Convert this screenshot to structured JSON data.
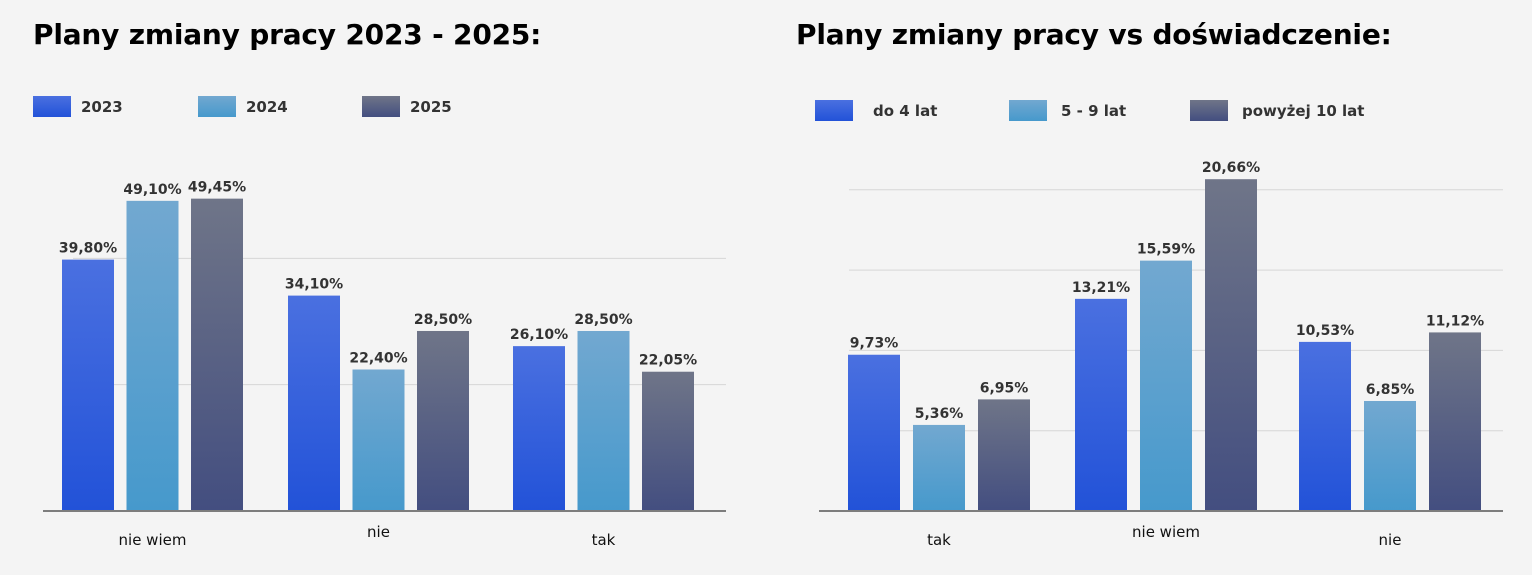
{
  "colors": {
    "background": "#f4f4f4",
    "series": [
      {
        "top": "#4a70e0",
        "bottom": "#2252d8"
      },
      {
        "top": "#72a8d0",
        "bottom": "#4699cc"
      },
      {
        "top": "#6f7588",
        "bottom": "#434e80"
      }
    ],
    "grid": "#d6d6d6",
    "axis": "#7d7d7d"
  },
  "chart_data": [
    {
      "type": "bar",
      "title": "Plany zmiany pracy 2023 - 2025:",
      "categories": [
        "nie wiem",
        "nie",
        "tak"
      ],
      "series": [
        {
          "name": "2023",
          "values": [
            39.8,
            34.1,
            26.1
          ],
          "labels": [
            "39,80%",
            "34,10%",
            "26,10%"
          ]
        },
        {
          "name": "2024",
          "values": [
            49.1,
            22.4,
            28.5
          ],
          "labels": [
            "49,10%",
            "22,40%",
            "28,50%"
          ]
        },
        {
          "name": "2025",
          "values": [
            49.45,
            28.5,
            22.05
          ],
          "labels": [
            "49,45%",
            "28,50%",
            "22,05%"
          ]
        }
      ],
      "ylim": [
        0,
        60
      ],
      "grid": true,
      "legend": "top-left"
    },
    {
      "type": "bar",
      "title": "Plany zmiany pracy vs doświadczenie:",
      "categories": [
        "tak",
        "nie wiem",
        "nie"
      ],
      "series": [
        {
          "name": "do 4 lat",
          "values": [
            9.73,
            13.21,
            10.53
          ],
          "labels": [
            "9,73%",
            "13,21%",
            "10,53%"
          ]
        },
        {
          "name": "5 - 9 lat",
          "values": [
            5.36,
            15.59,
            6.85
          ],
          "labels": [
            "5,36%",
            "15,59%",
            "6,85%"
          ]
        },
        {
          "name": "powyżej 10 lat",
          "values": [
            6.95,
            20.66,
            11.12
          ],
          "labels": [
            "6,95%",
            "20,66%",
            "11,12%"
          ]
        }
      ],
      "ylim": [
        0,
        25
      ],
      "grid": true,
      "legend": "top-left"
    }
  ]
}
